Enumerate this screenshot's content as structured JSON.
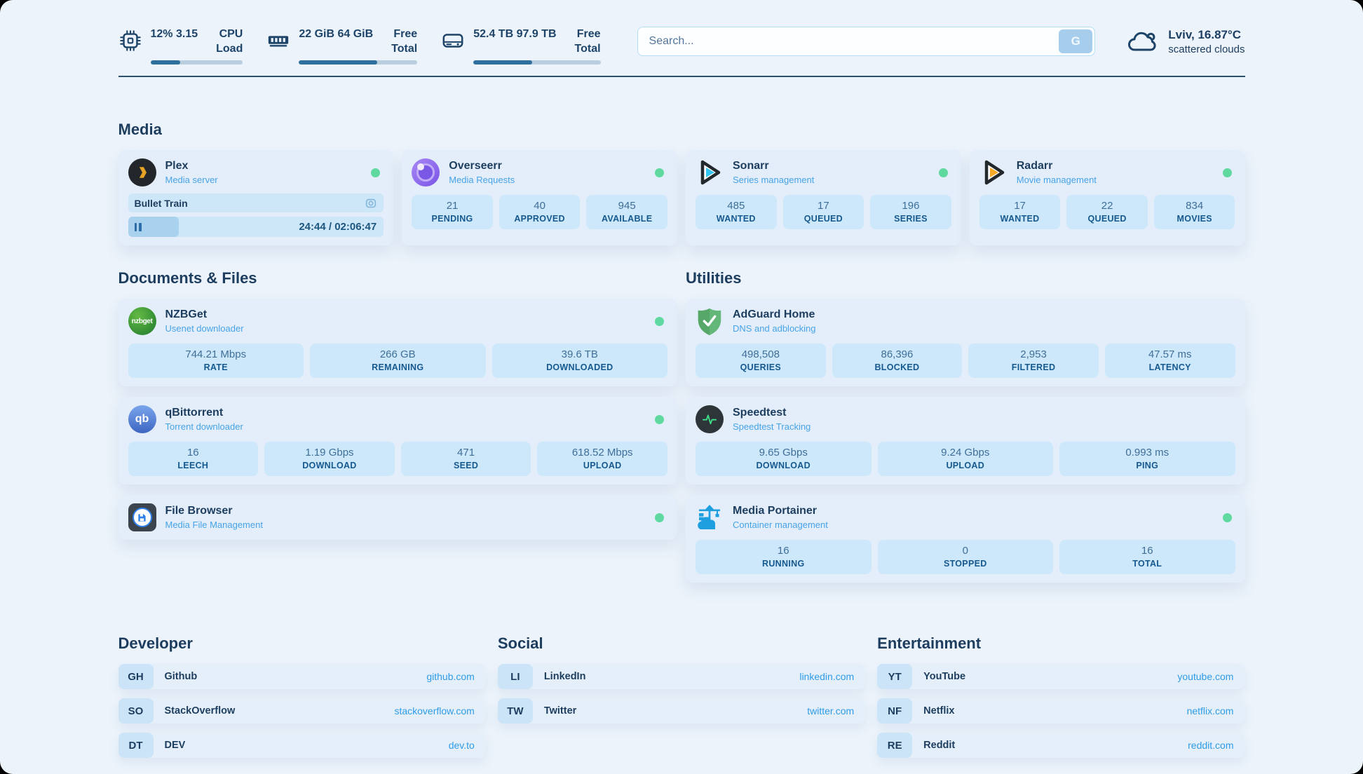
{
  "topbar": {
    "stats": [
      {
        "icon": "cpu-icon",
        "v1": "12%",
        "v2": "3.15",
        "l1": "CPU",
        "l2": "Load",
        "progress": 32
      },
      {
        "icon": "ram-icon",
        "v1": "22 GiB",
        "v2": "64 GiB",
        "l1": "Free",
        "l2": "Total",
        "progress": 66
      },
      {
        "icon": "disk-icon",
        "v1": "52.4 TB",
        "v2": "97.9 TB",
        "l1": "Free",
        "l2": "Total",
        "progress": 46
      }
    ],
    "search": {
      "placeholder": "Search...",
      "button_label": "G"
    },
    "weather": {
      "location": "Lviv, 16.87°C",
      "condition": "scattered clouds"
    }
  },
  "sections": {
    "media": {
      "title": "Media"
    },
    "documents": {
      "title": "Documents & Files"
    },
    "utilities": {
      "title": "Utilities"
    }
  },
  "services": {
    "plex": {
      "name": "Plex",
      "desc": "Media server",
      "status": "online",
      "player": {
        "title": "Bullet Train",
        "time": "24:44 / 02:06:47",
        "progress": 20
      }
    },
    "overseerr": {
      "name": "Overseerr",
      "desc": "Media Requests",
      "status": "online",
      "stats": [
        {
          "value": "21",
          "label": "PENDING"
        },
        {
          "value": "40",
          "label": "APPROVED"
        },
        {
          "value": "945",
          "label": "AVAILABLE"
        }
      ]
    },
    "sonarr": {
      "name": "Sonarr",
      "desc": "Series management",
      "status": "online",
      "stats": [
        {
          "value": "485",
          "label": "WANTED"
        },
        {
          "value": "17",
          "label": "QUEUED"
        },
        {
          "value": "196",
          "label": "SERIES"
        }
      ]
    },
    "radarr": {
      "name": "Radarr",
      "desc": "Movie management",
      "status": "online",
      "stats": [
        {
          "value": "17",
          "label": "WANTED"
        },
        {
          "value": "22",
          "label": "QUEUED"
        },
        {
          "value": "834",
          "label": "MOVIES"
        }
      ]
    },
    "nzbget": {
      "name": "NZBGet",
      "desc": "Usenet downloader",
      "status": "online",
      "icon_text": "nzbget",
      "stats": [
        {
          "value": "744.21 Mbps",
          "label": "RATE"
        },
        {
          "value": "266 GB",
          "label": "REMAINING"
        },
        {
          "value": "39.6 TB",
          "label": "DOWNLOADED"
        }
      ]
    },
    "qbittorrent": {
      "name": "qBittorrent",
      "desc": "Torrent downloader",
      "status": "online",
      "icon_text": "qb",
      "stats": [
        {
          "value": "16",
          "label": "LEECH"
        },
        {
          "value": "1.19 Gbps",
          "label": "DOWNLOAD"
        },
        {
          "value": "471",
          "label": "SEED"
        },
        {
          "value": "618.52 Mbps",
          "label": "UPLOAD"
        }
      ]
    },
    "filebrowser": {
      "name": "File Browser",
      "desc": "Media File Management",
      "status": "online"
    },
    "adguard": {
      "name": "AdGuard Home",
      "desc": "DNS and adblocking",
      "stats": [
        {
          "value": "498,508",
          "label": "QUERIES"
        },
        {
          "value": "86,396",
          "label": "BLOCKED"
        },
        {
          "value": "2,953",
          "label": "FILTERED"
        },
        {
          "value": "47.57 ms",
          "label": "LATENCY"
        }
      ]
    },
    "speedtest": {
      "name": "Speedtest",
      "desc": "Speedtest Tracking",
      "stats": [
        {
          "value": "9.65 Gbps",
          "label": "DOWNLOAD"
        },
        {
          "value": "9.24 Gbps",
          "label": "UPLOAD"
        },
        {
          "value": "0.993 ms",
          "label": "PING"
        }
      ]
    },
    "portainer": {
      "name": "Media Portainer",
      "desc": "Container management",
      "status": "online",
      "stats": [
        {
          "value": "16",
          "label": "RUNNING"
        },
        {
          "value": "0",
          "label": "STOPPED"
        },
        {
          "value": "16",
          "label": "TOTAL"
        }
      ]
    }
  },
  "bookmarks": {
    "developer": {
      "title": "Developer",
      "items": [
        {
          "abbr": "GH",
          "name": "Github",
          "url": "github.com"
        },
        {
          "abbr": "SO",
          "name": "StackOverflow",
          "url": "stackoverflow.com"
        },
        {
          "abbr": "DT",
          "name": "DEV",
          "url": "dev.to"
        }
      ]
    },
    "social": {
      "title": "Social",
      "items": [
        {
          "abbr": "LI",
          "name": "LinkedIn",
          "url": "linkedin.com"
        },
        {
          "abbr": "TW",
          "name": "Twitter",
          "url": "twitter.com"
        }
      ]
    },
    "entertainment": {
      "title": "Entertainment",
      "items": [
        {
          "abbr": "YT",
          "name": "YouTube",
          "url": "youtube.com"
        },
        {
          "abbr": "NF",
          "name": "Netflix",
          "url": "netflix.com"
        },
        {
          "abbr": "RE",
          "name": "Reddit",
          "url": "reddit.com"
        }
      ]
    }
  },
  "colors": {
    "accent": "#47a3e8",
    "status_online": "#5fd99f",
    "navy": "#1d3d5f"
  }
}
